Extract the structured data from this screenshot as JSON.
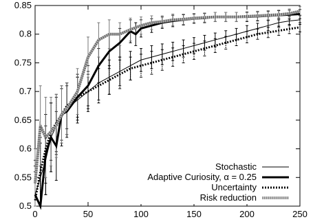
{
  "chart_data": {
    "type": "line",
    "title": "",
    "xlabel": "",
    "ylabel": "",
    "xlim": [
      0,
      250
    ],
    "ylim": [
      0.5,
      0.85
    ],
    "xticks": [
      0,
      50,
      100,
      150,
      200,
      250
    ],
    "yticks": [
      0.5,
      0.55,
      0.6,
      0.65,
      0.7,
      0.75,
      0.8,
      0.85
    ],
    "xtick_labels": [
      "0",
      "50",
      "100",
      "150",
      "200",
      "250"
    ],
    "ytick_labels": [
      "0.5",
      "0.55",
      "0.6",
      "0.65",
      "0.7",
      "0.75",
      "0.8",
      "0.85"
    ],
    "grid": false,
    "legend_position": "bottom-right",
    "error_bars": true,
    "series": [
      {
        "name": "Stochastic",
        "style": "thin-solid",
        "color": "#000000",
        "x": [
          0,
          5,
          10,
          15,
          20,
          25,
          30,
          40,
          50,
          60,
          70,
          80,
          90,
          100,
          110,
          120,
          130,
          140,
          150,
          160,
          170,
          180,
          190,
          200,
          210,
          220,
          230,
          240,
          250
        ],
        "y": [
          0.52,
          0.55,
          0.58,
          0.62,
          0.64,
          0.655,
          0.67,
          0.685,
          0.7,
          0.715,
          0.725,
          0.735,
          0.745,
          0.755,
          0.76,
          0.765,
          0.77,
          0.775,
          0.78,
          0.785,
          0.79,
          0.795,
          0.8,
          0.805,
          0.81,
          0.815,
          0.82,
          0.823,
          0.825
        ],
        "err": [
          0.05,
          0.06,
          0.06,
          0.06,
          0.05,
          0.05,
          0.045,
          0.04,
          0.035,
          0.03,
          0.03,
          0.025,
          0.025,
          0.02,
          0.02,
          0.018,
          0.016,
          0.015,
          0.014,
          0.013,
          0.012,
          0.011,
          0.01,
          0.01,
          0.009,
          0.009,
          0.008,
          0.008,
          0.008
        ]
      },
      {
        "name": "Adaptive Curiosity, α = 0.25",
        "style": "thick-solid",
        "color": "#000000",
        "x": [
          0,
          5,
          10,
          15,
          20,
          25,
          30,
          40,
          50,
          60,
          70,
          80,
          90,
          95,
          100,
          110,
          120,
          130,
          140,
          150,
          160,
          170,
          180,
          190,
          200,
          210,
          220,
          230,
          240,
          250
        ],
        "y": [
          0.52,
          0.5,
          0.59,
          0.62,
          0.605,
          0.66,
          0.665,
          0.69,
          0.71,
          0.745,
          0.77,
          0.785,
          0.805,
          0.8,
          0.81,
          0.815,
          0.82,
          0.823,
          0.825,
          0.827,
          0.828,
          0.83,
          0.83,
          0.83,
          0.83,
          0.831,
          0.832,
          0.833,
          0.834,
          0.835
        ],
        "err": [
          0.06,
          0.07,
          0.07,
          0.06,
          0.06,
          0.05,
          0.045,
          0.04,
          0.035,
          0.03,
          0.03,
          0.025,
          0.02,
          0.02,
          0.015,
          0.012,
          0.01,
          0.01,
          0.009,
          0.008,
          0.008,
          0.008,
          0.008,
          0.008,
          0.008,
          0.008,
          0.008,
          0.008,
          0.008,
          0.008
        ]
      },
      {
        "name": "Uncertainty",
        "style": "thick-dotted",
        "color": "#000000",
        "x": [
          0,
          5,
          10,
          15,
          20,
          25,
          30,
          40,
          50,
          60,
          70,
          80,
          90,
          100,
          110,
          120,
          130,
          140,
          150,
          160,
          170,
          180,
          190,
          200,
          210,
          220,
          230,
          240,
          250
        ],
        "y": [
          0.51,
          0.56,
          0.6,
          0.63,
          0.645,
          0.66,
          0.675,
          0.69,
          0.7,
          0.71,
          0.72,
          0.73,
          0.74,
          0.745,
          0.75,
          0.755,
          0.76,
          0.765,
          0.77,
          0.775,
          0.78,
          0.785,
          0.79,
          0.795,
          0.8,
          0.803,
          0.806,
          0.809,
          0.812
        ],
        "err": [
          0.05,
          0.06,
          0.06,
          0.05,
          0.05,
          0.045,
          0.04,
          0.035,
          0.03,
          0.03,
          0.025,
          0.025,
          0.02,
          0.02,
          0.02,
          0.018,
          0.016,
          0.015,
          0.014,
          0.013,
          0.012,
          0.011,
          0.01,
          0.01,
          0.009,
          0.009,
          0.008,
          0.008,
          0.008
        ]
      },
      {
        "name": "Risk reduction",
        "style": "hatched",
        "color": "#777777",
        "x": [
          0,
          5,
          10,
          15,
          20,
          25,
          30,
          40,
          50,
          60,
          70,
          80,
          90,
          100,
          110,
          120,
          130,
          140,
          150,
          160,
          170,
          180,
          190,
          200,
          210,
          220,
          230,
          240,
          250
        ],
        "y": [
          0.54,
          0.64,
          0.62,
          0.63,
          0.64,
          0.66,
          0.67,
          0.7,
          0.76,
          0.79,
          0.8,
          0.8,
          0.808,
          0.815,
          0.82,
          0.822,
          0.825,
          0.826,
          0.828,
          0.829,
          0.83,
          0.83,
          0.83,
          0.831,
          0.832,
          0.833,
          0.834,
          0.836,
          0.84
        ],
        "err": [
          0.06,
          0.07,
          0.07,
          0.06,
          0.055,
          0.05,
          0.045,
          0.04,
          0.035,
          0.03,
          0.025,
          0.02,
          0.02,
          0.015,
          0.012,
          0.01,
          0.01,
          0.009,
          0.008,
          0.008,
          0.008,
          0.008,
          0.008,
          0.008,
          0.008,
          0.008,
          0.008,
          0.008,
          0.008
        ]
      }
    ]
  }
}
